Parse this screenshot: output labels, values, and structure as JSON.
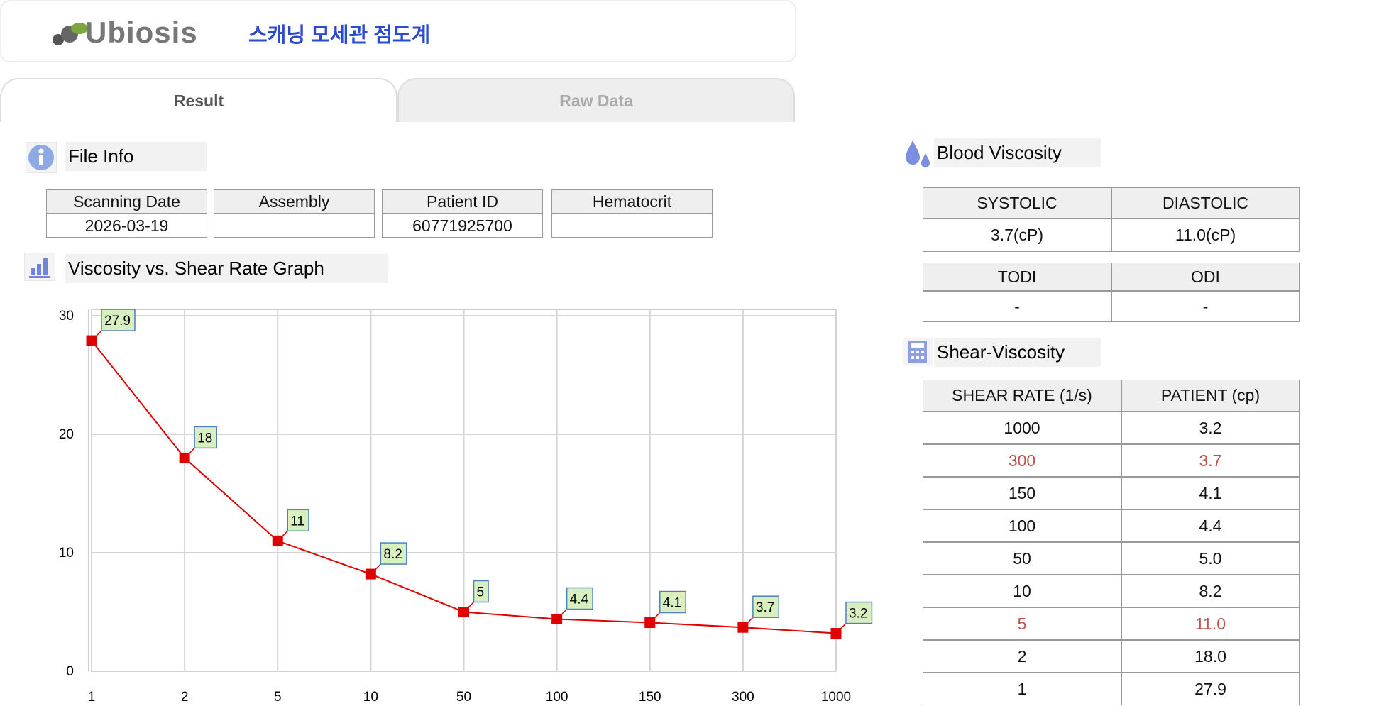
{
  "header": {
    "logo": "Ubiosis",
    "title": "스캐닝 모세관 점도계"
  },
  "tabs": [
    "Result",
    "Raw Data"
  ],
  "file_info": {
    "title": "File Info",
    "headers": [
      "Scanning Date",
      "Assembly",
      "Patient ID",
      "Hematocrit"
    ],
    "values": [
      "2026-03-19",
      null,
      "60771925700",
      null
    ]
  },
  "chart_data": {
    "type": "line",
    "title": "Viscosity vs. Shear Rate Graph",
    "categories": [
      "1",
      "2",
      "5",
      "10",
      "50",
      "100",
      "150",
      "300",
      "1000"
    ],
    "values": [
      27.9,
      18,
      11,
      8.2,
      5,
      4.4,
      4.1,
      3.7,
      3.2
    ],
    "color": "#e00000",
    "label_fill": "#d8f0c0",
    "label_border": "#4f81bd",
    "ylim": [
      0,
      30
    ],
    "yticks": [
      0,
      10,
      20,
      30
    ],
    "grid": true
  },
  "blood_viscosity": {
    "title": "Blood Viscosity",
    "tables": [
      {
        "headers": [
          "SYSTOLIC",
          "DIASTOLIC"
        ],
        "values": [
          "3.7(cP)",
          "11.0(cP)"
        ]
      },
      {
        "headers": [
          "TODI",
          "ODI"
        ],
        "values": [
          "-",
          "-"
        ]
      }
    ]
  },
  "shear_viscosity": {
    "title": "Shear-Viscosity",
    "headers": [
      "SHEAR RATE (1/s)",
      "PATIENT (cp)"
    ],
    "rows": [
      [
        "1000",
        "3.2"
      ],
      [
        "300",
        "3.7"
      ],
      [
        "150",
        "4.1"
      ],
      [
        "100",
        "4.4"
      ],
      [
        "50",
        "5.0"
      ],
      [
        "10",
        "8.2"
      ],
      [
        "5",
        "11.0"
      ],
      [
        "2",
        "18.0"
      ],
      [
        "1",
        "27.9"
      ]
    ],
    "highlighted_rows": [
      1,
      6
    ],
    "highlight_color": "#c0504d"
  }
}
